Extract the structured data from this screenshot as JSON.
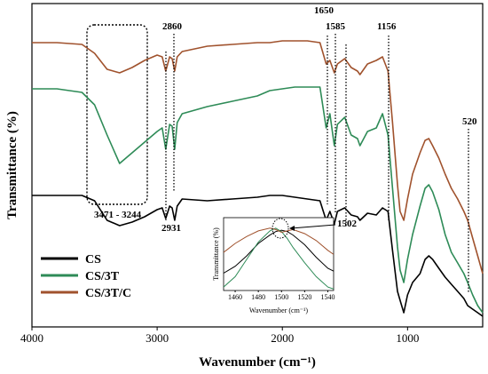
{
  "chart_data": {
    "type": "line",
    "xlabel": "Wavenumber (cm⁻¹)",
    "ylabel": "Transmittance (%)",
    "xlim": [
      4000,
      400
    ],
    "x_reversed": true,
    "x_ticks": [
      "4000",
      "3000",
      "2000",
      "1000"
    ],
    "grid": false,
    "legend_position": "bottom-left",
    "series": [
      {
        "name": "CS",
        "color": "#000000",
        "x": [
          4000,
          3800,
          3600,
          3500,
          3400,
          3300,
          3200,
          3100,
          3000,
          2960,
          2931,
          2900,
          2880,
          2860,
          2840,
          2800,
          2600,
          2400,
          2200,
          2100,
          2000,
          1900,
          1800,
          1700,
          1650,
          1620,
          1585,
          1560,
          1502,
          1450,
          1400,
          1380,
          1320,
          1250,
          1200,
          1156,
          1120,
          1080,
          1060,
          1030,
          1000,
          960,
          900,
          860,
          830,
          800,
          750,
          700,
          650,
          600,
          550,
          520,
          480,
          440,
          400
        ],
        "y": [
          0.74,
          0.74,
          0.74,
          0.71,
          0.6,
          0.57,
          0.59,
          0.62,
          0.66,
          0.67,
          0.61,
          0.68,
          0.67,
          0.6,
          0.68,
          0.72,
          0.71,
          0.72,
          0.73,
          0.74,
          0.74,
          0.73,
          0.72,
          0.71,
          0.6,
          0.65,
          0.58,
          0.65,
          0.67,
          0.63,
          0.62,
          0.6,
          0.64,
          0.63,
          0.67,
          0.65,
          0.43,
          0.2,
          0.15,
          0.08,
          0.18,
          0.25,
          0.3,
          0.38,
          0.4,
          0.38,
          0.33,
          0.28,
          0.24,
          0.2,
          0.16,
          0.12,
          0.1,
          0.08,
          0.06
        ]
      },
      {
        "name": "CS/3T",
        "color": "#2e8b57",
        "x": [
          4000,
          3800,
          3600,
          3500,
          3400,
          3300,
          3200,
          3100,
          3000,
          2960,
          2931,
          2900,
          2880,
          2860,
          2840,
          2800,
          2600,
          2400,
          2200,
          2100,
          2000,
          1900,
          1800,
          1700,
          1650,
          1620,
          1585,
          1560,
          1502,
          1450,
          1400,
          1380,
          1320,
          1250,
          1200,
          1156,
          1120,
          1080,
          1060,
          1030,
          1000,
          960,
          900,
          860,
          830,
          800,
          750,
          700,
          650,
          600,
          550,
          520,
          480,
          440,
          400
        ],
        "y": [
          1.34,
          1.34,
          1.32,
          1.25,
          1.08,
          0.92,
          0.98,
          1.04,
          1.1,
          1.12,
          1.0,
          1.14,
          1.13,
          1.0,
          1.15,
          1.2,
          1.24,
          1.27,
          1.3,
          1.33,
          1.34,
          1.35,
          1.35,
          1.35,
          1.12,
          1.2,
          1.02,
          1.14,
          1.18,
          1.08,
          1.06,
          1.02,
          1.1,
          1.12,
          1.2,
          1.08,
          0.78,
          0.45,
          0.32,
          0.25,
          0.38,
          0.52,
          0.68,
          0.78,
          0.8,
          0.76,
          0.66,
          0.52,
          0.42,
          0.36,
          0.3,
          0.25,
          0.18,
          0.12,
          0.08
        ]
      },
      {
        "name": "CS/3T/C",
        "color": "#a0522d",
        "x": [
          4000,
          3800,
          3600,
          3500,
          3400,
          3300,
          3200,
          3100,
          3000,
          2960,
          2931,
          2900,
          2880,
          2860,
          2840,
          2800,
          2600,
          2400,
          2200,
          2100,
          2000,
          1900,
          1800,
          1700,
          1650,
          1620,
          1585,
          1560,
          1502,
          1450,
          1400,
          1380,
          1320,
          1250,
          1200,
          1156,
          1120,
          1080,
          1060,
          1030,
          1000,
          960,
          900,
          860,
          830,
          800,
          750,
          700,
          650,
          600,
          550,
          520,
          480,
          440,
          400
        ],
        "y": [
          1.6,
          1.6,
          1.59,
          1.54,
          1.45,
          1.43,
          1.46,
          1.5,
          1.53,
          1.52,
          1.44,
          1.52,
          1.51,
          1.44,
          1.52,
          1.55,
          1.58,
          1.59,
          1.6,
          1.6,
          1.61,
          1.61,
          1.61,
          1.6,
          1.48,
          1.5,
          1.43,
          1.48,
          1.51,
          1.46,
          1.44,
          1.42,
          1.48,
          1.5,
          1.52,
          1.44,
          1.15,
          0.8,
          0.65,
          0.6,
          0.72,
          0.86,
          0.98,
          1.05,
          1.06,
          1.02,
          0.95,
          0.86,
          0.78,
          0.72,
          0.65,
          0.6,
          0.5,
          0.4,
          0.3
        ]
      }
    ],
    "peak_labels": [
      "2860",
      "1650",
      "1585",
      "1156",
      "520",
      "2931",
      "1502"
    ],
    "region_label": "3471 - 3244",
    "inset": {
      "xlabel": "Wavenumber (cm⁻¹)",
      "ylabel": "Transmittance (%)",
      "xlim": [
        1450,
        1545
      ],
      "x_ticks": [
        "1460",
        "1480",
        "1500",
        "1520",
        "1540"
      ],
      "series": [
        {
          "color": "#000000",
          "x": [
            1450,
            1460,
            1470,
            1480,
            1490,
            1495,
            1500,
            1505,
            1510,
            1520,
            1530,
            1540,
            1545
          ],
          "y": [
            0.25,
            0.35,
            0.5,
            0.68,
            0.8,
            0.85,
            0.87,
            0.85,
            0.8,
            0.66,
            0.48,
            0.32,
            0.28
          ]
        },
        {
          "color": "#2e8b57",
          "x": [
            1450,
            1460,
            1470,
            1480,
            1490,
            1495,
            1500,
            1505,
            1510,
            1520,
            1530,
            1540,
            1545
          ],
          "y": [
            0.05,
            0.2,
            0.45,
            0.7,
            0.86,
            0.9,
            0.85,
            0.75,
            0.62,
            0.4,
            0.2,
            0.05,
            0.02
          ]
        },
        {
          "color": "#a0522d",
          "x": [
            1450,
            1460,
            1470,
            1480,
            1490,
            1495,
            1500,
            1505,
            1510,
            1520,
            1530,
            1540,
            1545
          ],
          "y": [
            0.55,
            0.68,
            0.78,
            0.86,
            0.9,
            0.88,
            0.84,
            0.86,
            0.88,
            0.82,
            0.72,
            0.58,
            0.52
          ]
        }
      ]
    }
  }
}
